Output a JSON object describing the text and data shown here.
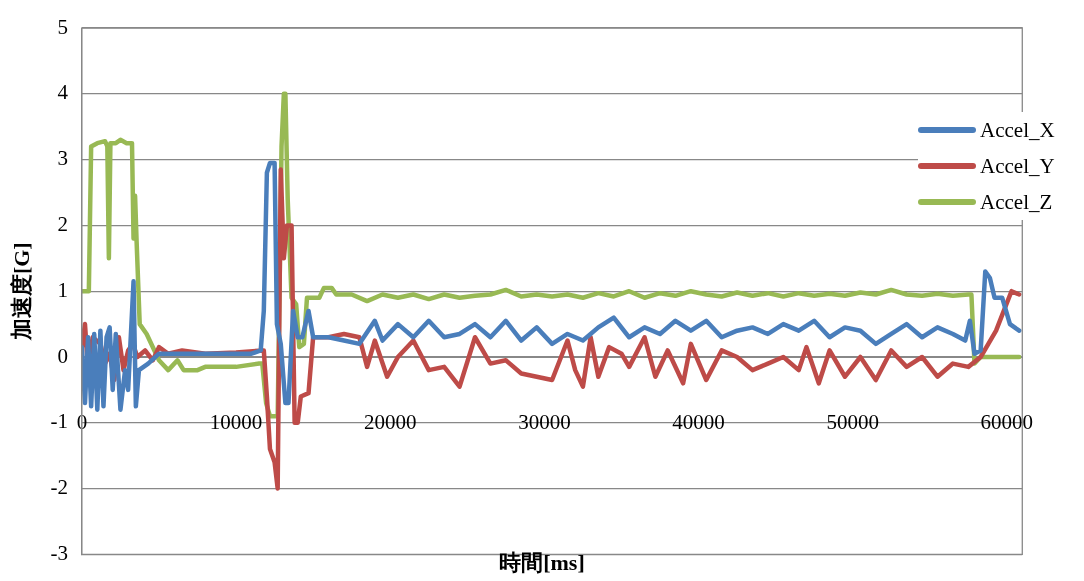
{
  "chart_data": {
    "type": "line",
    "xlabel": "時間[ms]",
    "ylabel": "加速度[G]",
    "xlim": [
      0,
      61000
    ],
    "xticks": [
      0,
      10000,
      20000,
      30000,
      40000,
      50000,
      60000
    ],
    "ylim": [
      -3,
      5
    ],
    "yticks": [
      -3,
      -2,
      -1,
      0,
      1,
      2,
      3,
      4,
      5
    ],
    "grid": "y",
    "legend": "right",
    "marker": "none",
    "line_style": "solid",
    "series": [
      {
        "name": "Accel_X",
        "color": "#4a7ebb",
        "x": [
          0,
          200,
          400,
          600,
          800,
          1000,
          1200,
          1400,
          1600,
          1800,
          2000,
          2200,
          2500,
          2800,
          3000,
          3350,
          3500,
          3700,
          4300,
          5000,
          7000,
          9000,
          11000,
          11600,
          11800,
          12000,
          12200,
          12500,
          12650,
          12900,
          13200,
          13400,
          13700,
          14000,
          14300,
          14700,
          15000,
          16000,
          17000,
          18000,
          19000,
          19500,
          20500,
          21500,
          22500,
          23500,
          24500,
          25500,
          26500,
          27500,
          28500,
          29500,
          30500,
          31500,
          32500,
          33500,
          34500,
          35500,
          36500,
          37500,
          38500,
          39500,
          40500,
          41500,
          42500,
          43500,
          44500,
          45500,
          46500,
          47500,
          48500,
          49500,
          50500,
          51500,
          52500,
          53500,
          54500,
          55500,
          56500,
          57300,
          57600,
          57900,
          58300,
          58600,
          58900,
          59200,
          59700,
          60200,
          60800
        ],
        "values": [
          0.15,
          -0.7,
          0.3,
          -0.75,
          0.35,
          -0.8,
          0.4,
          -0.75,
          0.3,
          0.45,
          -0.5,
          0.35,
          -0.8,
          -0.2,
          -0.5,
          1.15,
          -0.75,
          -0.2,
          -0.1,
          0.05,
          0.05,
          0.05,
          0.05,
          0.1,
          0.7,
          2.8,
          2.95,
          2.95,
          0.5,
          0.2,
          -0.7,
          -0.7,
          0.7,
          0.3,
          0.3,
          0.7,
          0.3,
          0.3,
          0.25,
          0.2,
          0.55,
          0.25,
          0.5,
          0.3,
          0.55,
          0.3,
          0.35,
          0.5,
          0.3,
          0.55,
          0.25,
          0.45,
          0.2,
          0.35,
          0.25,
          0.45,
          0.6,
          0.3,
          0.45,
          0.35,
          0.55,
          0.4,
          0.55,
          0.3,
          0.4,
          0.45,
          0.35,
          0.5,
          0.4,
          0.55,
          0.3,
          0.45,
          0.4,
          0.2,
          0.35,
          0.5,
          0.3,
          0.45,
          0.35,
          0.25,
          0.55,
          0.05,
          0.1,
          1.3,
          1.2,
          0.9,
          0.9,
          0.5,
          0.4
        ]
      },
      {
        "name": "Accel_Y",
        "color": "#be4b48",
        "x": [
          0,
          200,
          400,
          700,
          900,
          1200,
          1500,
          1800,
          2100,
          2400,
          2700,
          3000,
          3300,
          3600,
          4100,
          4600,
          5000,
          5600,
          6500,
          8000,
          10000,
          11800,
          12000,
          12200,
          12500,
          12700,
          12900,
          13100,
          13300,
          13600,
          13800,
          14000,
          14200,
          14700,
          15000,
          16000,
          17000,
          18000,
          18500,
          19000,
          19800,
          20500,
          21500,
          22500,
          23500,
          24500,
          25500,
          26500,
          27500,
          28500,
          29500,
          30500,
          31500,
          32000,
          32500,
          33000,
          33500,
          34200,
          35000,
          35500,
          36500,
          37200,
          38000,
          39000,
          39500,
          40500,
          41500,
          42500,
          43500,
          44500,
          45500,
          46500,
          47000,
          47800,
          48500,
          49500,
          50500,
          51500,
          52500,
          53500,
          54500,
          55500,
          56500,
          57500,
          58300,
          58800,
          59300,
          59800,
          60300,
          60800
        ],
        "values": [
          0.15,
          0.5,
          -0.2,
          0.3,
          null,
          0.2,
          -0.1,
          0.05,
          -0.35,
          0.3,
          -0.2,
          0.1,
          0.2,
          0.0,
          0.1,
          -0.05,
          0.15,
          0.05,
          0.1,
          0.05,
          0.07,
          0.1,
          -0.6,
          -1.4,
          -1.6,
          -2.0,
          2.85,
          1.5,
          2.0,
          2.0,
          -1.0,
          -1.0,
          -0.6,
          -0.55,
          0.3,
          0.3,
          0.35,
          0.3,
          -0.15,
          0.25,
          -0.3,
          0.0,
          0.25,
          -0.2,
          -0.15,
          -0.45,
          0.3,
          -0.1,
          -0.05,
          -0.25,
          -0.3,
          -0.35,
          0.25,
          -0.2,
          -0.45,
          0.3,
          -0.3,
          0.15,
          0.05,
          -0.15,
          0.3,
          -0.3,
          0.1,
          -0.4,
          0.2,
          -0.35,
          0.1,
          0.0,
          -0.2,
          -0.1,
          0.0,
          -0.2,
          0.15,
          -0.4,
          0.1,
          -0.3,
          0.0,
          -0.35,
          0.1,
          -0.15,
          0.0,
          -0.3,
          -0.1,
          -0.15,
          0.0,
          0.2,
          0.4,
          0.7,
          1.0,
          0.95
        ]
      },
      {
        "name": "Accel_Z",
        "color": "#98b954",
        "x": [
          0,
          450,
          600,
          1000,
          1500,
          1650,
          1750,
          1850,
          2200,
          2500,
          2900,
          3250,
          3350,
          3450,
          3550,
          3750,
          4200,
          5000,
          5600,
          6200,
          6600,
          7500,
          8000,
          10000,
          11500,
          11700,
          11950,
          12200,
          12700,
          12850,
          12950,
          13100,
          13200,
          13350,
          13600,
          13900,
          14100,
          14400,
          14600,
          15400,
          15700,
          16200,
          16500,
          17500,
          18500,
          19500,
          20500,
          21500,
          22500,
          23500,
          24500,
          25500,
          26500,
          27500,
          28500,
          29500,
          30500,
          31500,
          32500,
          33500,
          34500,
          35500,
          36500,
          37500,
          38500,
          39500,
          40500,
          41500,
          42500,
          43500,
          44500,
          45500,
          46500,
          47500,
          48500,
          49500,
          50500,
          51500,
          52500,
          53500,
          54500,
          55500,
          56500,
          57500,
          57700,
          57900,
          58300,
          59000,
          60800
        ],
        "values": [
          1.0,
          1.0,
          3.2,
          3.25,
          3.28,
          3.2,
          1.5,
          3.25,
          3.25,
          3.3,
          3.25,
          3.25,
          1.8,
          2.45,
          1.75,
          0.5,
          0.35,
          -0.05,
          -0.2,
          -0.05,
          -0.2,
          -0.2,
          -0.15,
          -0.15,
          -0.1,
          -0.1,
          -0.7,
          -0.9,
          -0.9,
          1.5,
          3.2,
          4.0,
          4.0,
          2.4,
          0.9,
          0.8,
          0.15,
          0.2,
          0.9,
          0.9,
          1.05,
          1.05,
          0.95,
          0.95,
          0.85,
          0.95,
          0.9,
          0.95,
          0.88,
          0.95,
          0.9,
          0.93,
          0.95,
          1.02,
          0.92,
          0.95,
          0.92,
          0.95,
          0.9,
          0.97,
          0.92,
          1.0,
          0.9,
          0.97,
          0.93,
          1.0,
          0.95,
          0.92,
          0.98,
          0.93,
          0.97,
          0.92,
          0.97,
          0.93,
          0.96,
          0.93,
          0.98,
          0.95,
          1.02,
          0.95,
          0.93,
          0.96,
          0.93,
          0.95,
          0.95,
          -0.1,
          0.0,
          0.0,
          0.0
        ]
      }
    ]
  }
}
